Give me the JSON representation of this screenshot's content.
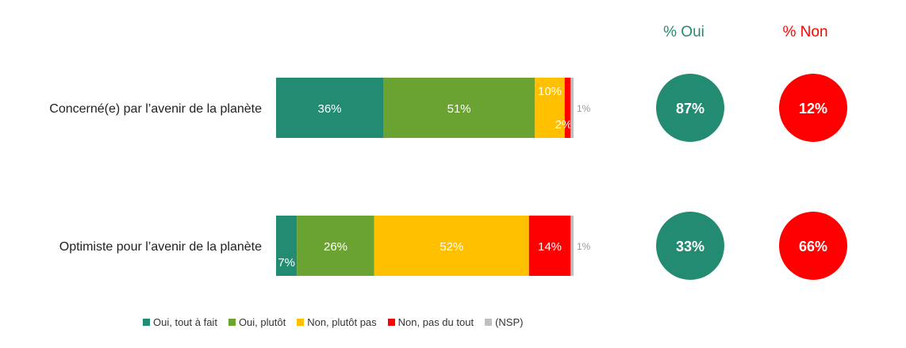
{
  "chart_data": {
    "type": "bar",
    "orientation": "horizontal",
    "stacked": true,
    "categories": [
      "Concerné(e) par l’avenir de la planète",
      "Optimiste pour l’avenir de la planète"
    ],
    "series": [
      {
        "name": "Oui, tout à fait",
        "color": "#238b72",
        "values": [
          36,
          7
        ],
        "labels": [
          "36%",
          "7%"
        ]
      },
      {
        "name": "Oui, plutôt",
        "color": "#6aa331",
        "values": [
          51,
          26
        ],
        "labels": [
          "51%",
          "26%"
        ]
      },
      {
        "name": "Non, plutôt pas",
        "color": "#ffc000",
        "values": [
          10,
          52
        ],
        "labels": [
          "10%",
          "52%"
        ]
      },
      {
        "name": "Non, pas du tout",
        "color": "#ff0000",
        "values": [
          2,
          14
        ],
        "labels": [
          "2%",
          "14%"
        ]
      },
      {
        "name": "(NSP)",
        "color": "#bfbfbf",
        "values": [
          1,
          1
        ],
        "labels": [
          "1%",
          "1%"
        ]
      }
    ],
    "summary": {
      "oui": {
        "header": "% Oui",
        "color": "#238b72",
        "values": [
          "87%",
          "33%"
        ]
      },
      "non": {
        "header": "% Non",
        "color": "#ff0000",
        "values": [
          "12%",
          "66%"
        ]
      }
    },
    "xlim": [
      0,
      100
    ],
    "legend": "bottom",
    "grid": false
  }
}
